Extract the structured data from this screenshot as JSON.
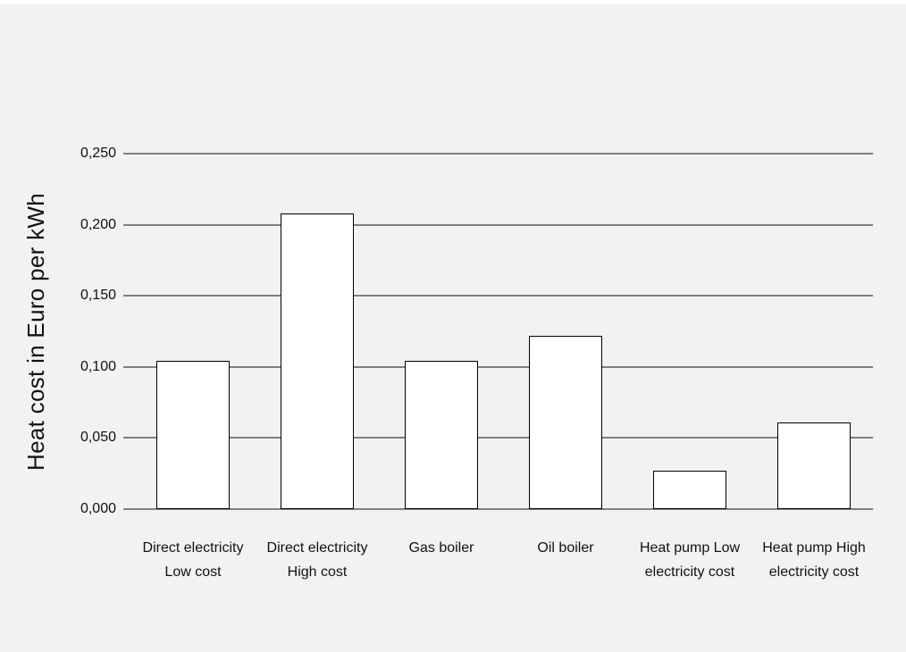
{
  "page": {
    "background": "#f2f2f2",
    "top_band_color": "#ffffff"
  },
  "chart_data": {
    "type": "bar",
    "title": "",
    "xlabel": "",
    "ylabel": "Heat cost in Euro per kWh",
    "ylim": [
      0,
      0.25
    ],
    "y_tick_interval": 0.05,
    "y_tick_labels": [
      "0,000",
      "0,050",
      "0,100",
      "0,150",
      "0,200",
      "0,250"
    ],
    "decimal_style": "comma",
    "grid": "horizontal-only",
    "legend": "none",
    "categories": [
      "Direct electricity Low cost",
      "Direct electricity High cost",
      "Gas boiler",
      "Oil boiler",
      "Heat pump Low electricity cost",
      "Heat pump High electricity cost"
    ],
    "category_lines": [
      [
        "Direct electricity",
        "Low cost"
      ],
      [
        "Direct electricity",
        "High cost"
      ],
      [
        "Gas boiler"
      ],
      [
        "Oil boiler"
      ],
      [
        "Heat pump Low",
        "electricity cost"
      ],
      [
        "Heat pump High",
        "electricity cost"
      ]
    ],
    "values": [
      0.104,
      0.208,
      0.104,
      0.122,
      0.027,
      0.061
    ],
    "colors": {
      "bar_fill": "#ffffff",
      "bar_border": "#000000",
      "gridline": "#808080",
      "text": "#111111",
      "background": "#f2f2f2"
    }
  }
}
